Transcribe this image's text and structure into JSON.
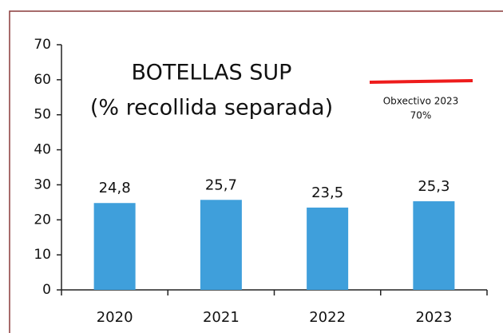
{
  "chart_data": {
    "type": "bar",
    "title": [
      "BOTELLAS SUP",
      "(% recollida separada)"
    ],
    "categories": [
      "2020",
      "2021",
      "2022",
      "2023"
    ],
    "values": [
      24.8,
      25.7,
      23.5,
      25.3
    ],
    "value_labels": [
      "24,8",
      "25,7",
      "23,5",
      "25,3"
    ],
    "color": "#3f9fdb",
    "ylim": [
      0,
      70
    ],
    "yticks": [
      0,
      10,
      20,
      30,
      40,
      50,
      60,
      70
    ],
    "grid": false,
    "annotation": {
      "text": [
        "Obxectivo 2023",
        "70%"
      ],
      "color": "#ee1c1c"
    }
  }
}
